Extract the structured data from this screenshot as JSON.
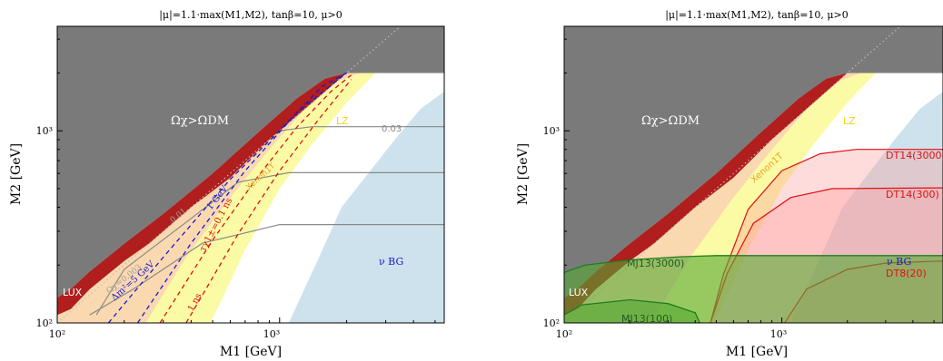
{
  "colors": {
    "excluded_gray": "#7a7a7a",
    "lux_red": "#b01e1e",
    "xenon_orange_fill": "#fbd9b0",
    "lz_yellow_fill": "#fbfba6",
    "nu_bg_blue": "#cde2ec",
    "dt_red_fill": "#ff9a9a",
    "dt_red_line": "#e01010",
    "mj_green_fill": "#55a832",
    "mj_green_line": "#1e7e1e",
    "dm_blue_dash": "#1a1acc",
    "tau_red_dash": "#e01010",
    "contour_gray": "#8a8a8a",
    "xenon_text": "#f0a020",
    "lz_text": "#f2d21a"
  },
  "chart_data": [
    {
      "type": "area",
      "title": "|μ|=1.1·max(M1,M2), tanβ=10, μ>0",
      "xlabel": "M1 [GeV]",
      "ylabel": "M2 [GeV]",
      "xscale": "log",
      "yscale": "log",
      "xlim": [
        100,
        5500
      ],
      "ylim": [
        100,
        3500
      ],
      "xticks": [
        {
          "value": 100,
          "label": "10²"
        },
        {
          "value": 1000,
          "label": "10³"
        }
      ],
      "yticks": [
        {
          "value": 100,
          "label": "10²"
        },
        {
          "value": 1000,
          "label": "10³"
        }
      ],
      "regions": [
        {
          "name": "Ωχ>ΩDM",
          "label": "Ωχ>ΩDM",
          "color": "excluded_gray"
        },
        {
          "name": "LUX",
          "label": "LUX",
          "color": "lux_red"
        },
        {
          "name": "Xenon1T",
          "label": "Xenon1T",
          "color": "xenon_orange_fill"
        },
        {
          "name": "LZ",
          "label": "LZ",
          "color": "lz_yellow_fill"
        },
        {
          "name": "ν BG",
          "label": "ν BG",
          "color": "nu_bg_blue"
        }
      ],
      "contours": [
        {
          "kind": "relic",
          "label": "0.03"
        },
        {
          "kind": "relic",
          "label": "Ωχ=0.003"
        },
        {
          "kind": "relic",
          "label": "0.01"
        },
        {
          "kind": "mass_splitting",
          "label": "Δm²=5 GeV"
        },
        {
          "kind": "mass_splitting",
          "label": "1 GeV"
        },
        {
          "kind": "lifetime",
          "label": "τχ1±=0.1 ns"
        },
        {
          "kind": "lifetime",
          "label": "1 ns"
        }
      ],
      "boundary_series": [
        {
          "role": "relic_gray_upper_edge",
          "points": [
            [
              100,
              135
            ],
            [
              115,
              150
            ],
            [
              140,
              185
            ],
            [
              200,
              258
            ],
            [
              300,
              370
            ],
            [
              500,
              600
            ],
            [
              800,
              980
            ],
            [
              1200,
              1480
            ],
            [
              1600,
              1870
            ],
            [
              2000,
              2000
            ],
            [
              5500,
              2000
            ]
          ]
        },
        {
          "role": "lux_right_edge",
          "points": [
            [
              100,
              110
            ],
            [
              115,
              118
            ],
            [
              140,
              150
            ],
            [
              200,
              210
            ],
            [
              260,
              260
            ],
            [
              400,
              400
            ],
            [
              600,
              570
            ],
            [
              900,
              900
            ],
            [
              1300,
              1300
            ],
            [
              1800,
              1800
            ],
            [
              2000,
              2000
            ]
          ]
        },
        {
          "role": "xenon1t_right_edge",
          "points": [
            [
              100,
              100
            ],
            [
              250,
              100
            ],
            [
              380,
              220
            ],
            [
              600,
              450
            ],
            [
              900,
              800
            ],
            [
              1300,
              1300
            ],
            [
              1800,
              1800
            ],
            [
              2300,
              2000
            ]
          ]
        },
        {
          "role": "lz_right_edge",
          "points": [
            [
              490,
              100
            ],
            [
              700,
              240
            ],
            [
              1000,
              500
            ],
            [
              1400,
              850
            ],
            [
              2000,
              1400
            ],
            [
              2700,
              2000
            ]
          ]
        },
        {
          "role": "nu_bg_left_edge",
          "points": [
            [
              1100,
              100
            ],
            [
              1450,
              200
            ],
            [
              1900,
              400
            ],
            [
              2500,
              600
            ],
            [
              3300,
              900
            ],
            [
              4300,
              1300
            ],
            [
              5500,
              1600
            ]
          ]
        },
        {
          "role": "contour_0.03",
          "points": [
            [
              1000,
              1000
            ],
            [
              1400,
              1050
            ],
            [
              5500,
              1050
            ]
          ]
        },
        {
          "role": "contour_0.01",
          "points": [
            [
              150,
              110
            ],
            [
              200,
              190
            ],
            [
              400,
              350
            ],
            [
              650,
              540
            ],
            [
              1100,
              605
            ],
            [
              5500,
              605
            ]
          ]
        },
        {
          "role": "contour_0.003",
          "points": [
            [
              140,
              110
            ],
            [
              220,
              150
            ],
            [
              450,
              260
            ],
            [
              1000,
              325
            ],
            [
              5500,
              325
            ]
          ]
        },
        {
          "role": "dm_5GeV",
          "points": [
            [
              170,
              100
            ],
            [
              300,
              220
            ],
            [
              600,
              560
            ],
            [
              1000,
              1000
            ],
            [
              1550,
              1700
            ],
            [
              2000,
              2000
            ]
          ]
        },
        {
          "role": "dm_1GeV",
          "points": [
            [
              230,
              100
            ],
            [
              400,
              260
            ],
            [
              700,
              620
            ],
            [
              1200,
              1250
            ],
            [
              2000,
              2000
            ]
          ]
        },
        {
          "role": "tau_0.1ns",
          "points": [
            [
              290,
              100
            ],
            [
              500,
              270
            ],
            [
              800,
              580
            ],
            [
              1200,
              1050
            ],
            [
              1700,
              1600
            ],
            [
              2100,
              1950
            ]
          ]
        },
        {
          "role": "tau_1ns",
          "points": [
            [
              380,
              100
            ],
            [
              650,
              290
            ],
            [
              1000,
              620
            ],
            [
              1500,
              1150
            ],
            [
              2100,
              1850
            ]
          ]
        }
      ]
    },
    {
      "type": "area",
      "title": "|μ|=1.1·max(M1,M2), tanβ=10, μ>0",
      "xlabel": "M1 [GeV]",
      "ylabel": "M2 [GeV]",
      "xscale": "log",
      "yscale": "log",
      "xlim": [
        100,
        5500
      ],
      "ylim": [
        100,
        3500
      ],
      "xticks": [
        {
          "value": 100,
          "label": "10²"
        },
        {
          "value": 1000,
          "label": "10³"
        }
      ],
      "yticks": [
        {
          "value": 100,
          "label": "10²"
        },
        {
          "value": 1000,
          "label": "10³"
        }
      ],
      "regions": [
        {
          "name": "Ωχ>ΩDM",
          "label": "Ωχ>ΩDM",
          "color": "excluded_gray"
        },
        {
          "name": "LUX",
          "label": "LUX",
          "color": "lux_red"
        },
        {
          "name": "Xenon1T",
          "label": "Xenon1T",
          "color": "xenon_orange_fill"
        },
        {
          "name": "LZ",
          "label": "LZ",
          "color": "lz_yellow_fill"
        },
        {
          "name": "ν BG",
          "label": "ν BG",
          "color": "nu_bg_blue"
        },
        {
          "name": "DT14(3000)",
          "label": "DT14(3000)",
          "color": "dt_red_fill"
        },
        {
          "name": "DT14(300)",
          "label": "DT14(300)",
          "color": "dt_red_fill"
        },
        {
          "name": "DT8(20)",
          "label": "DT8(20)",
          "color": "dt_red_fill"
        },
        {
          "name": "MJ13(3000)",
          "label": "MJ13(3000)",
          "color": "mj_green_fill"
        },
        {
          "name": "MJ13(100)",
          "label": "MJ13(100)",
          "color": "mj_green_fill"
        }
      ],
      "boundary_series": [
        {
          "role": "dt14_3000",
          "points": [
            [
              470,
              100
            ],
            [
              540,
              180
            ],
            [
              700,
              390
            ],
            [
              1000,
              620
            ],
            [
              1500,
              760
            ],
            [
              2200,
              800
            ],
            [
              5500,
              800
            ]
          ]
        },
        {
          "role": "dt14_300",
          "points": [
            [
              470,
              100
            ],
            [
              560,
              180
            ],
            [
              740,
              330
            ],
            [
              1100,
              450
            ],
            [
              1700,
              500
            ],
            [
              5500,
              505
            ]
          ]
        },
        {
          "role": "dt8_20",
          "points": [
            [
              1030,
              100
            ],
            [
              1300,
              150
            ],
            [
              2000,
              190
            ],
            [
              3000,
              205
            ],
            [
              5500,
              210
            ]
          ]
        },
        {
          "role": "mj13_3000",
          "points": [
            [
              100,
              183
            ],
            [
              125,
              200
            ],
            [
              200,
              213
            ],
            [
              340,
              221
            ],
            [
              500,
              224
            ],
            [
              5500,
              224
            ]
          ]
        },
        {
          "role": "mj13_100",
          "points": [
            [
              100,
              110
            ],
            [
              120,
              124
            ],
            [
              200,
              132
            ],
            [
              300,
              126
            ],
            [
              400,
              113
            ],
            [
              420,
              100
            ]
          ]
        }
      ]
    }
  ]
}
